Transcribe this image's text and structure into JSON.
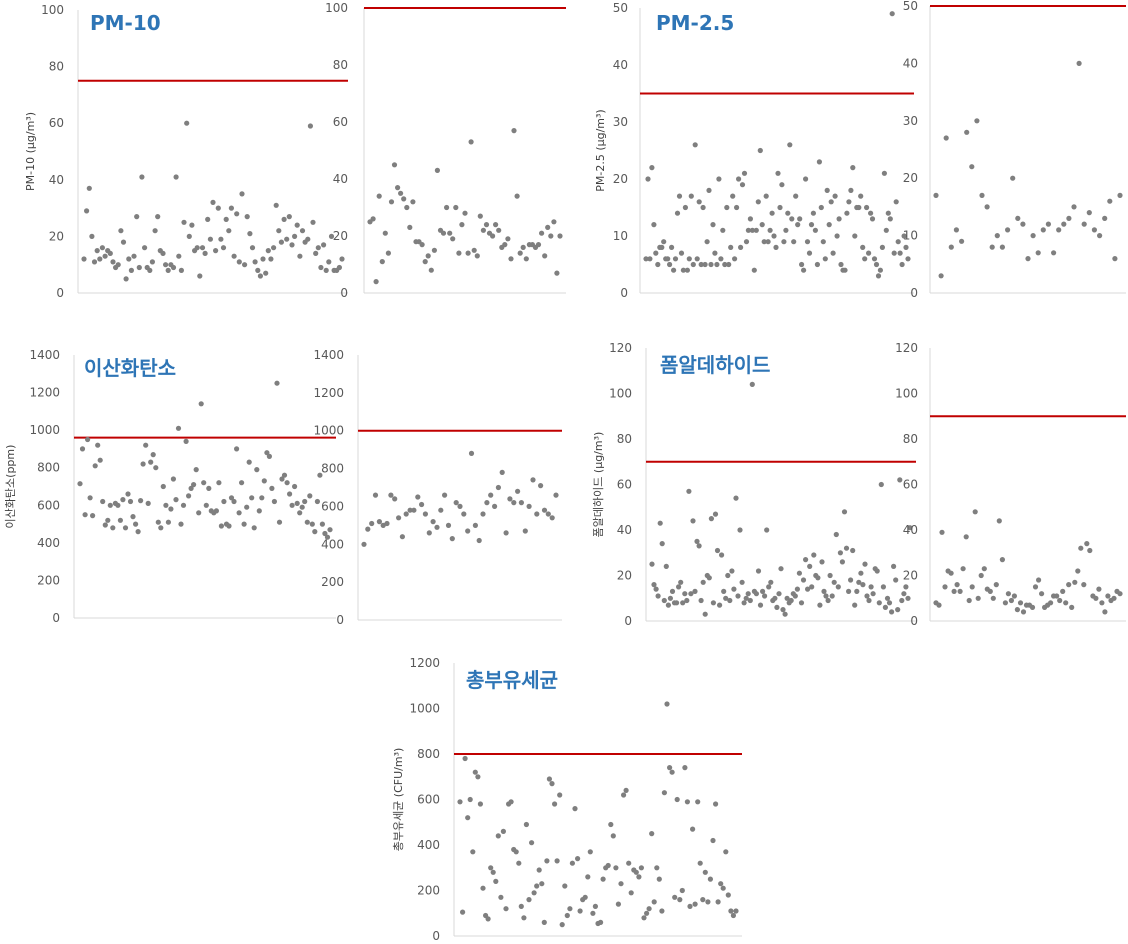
{
  "chart_data": [
    {
      "type": "scatter",
      "title": "PM-10",
      "ylabel": "PM-10 (μg/m³)",
      "ylim": [
        0,
        100
      ],
      "yticks": [
        0,
        20,
        40,
        60,
        80,
        100
      ],
      "reference_line": 75,
      "series_color": "#7f7f7f",
      "line_color": "#c00000",
      "values": [
        12,
        29,
        37,
        20,
        11,
        15,
        12,
        16,
        13,
        15,
        14,
        11,
        9,
        10,
        22,
        18,
        5,
        12,
        8,
        13,
        27,
        9,
        41,
        16,
        9,
        8,
        11,
        22,
        27,
        15,
        14,
        10,
        8,
        10,
        9,
        41,
        13,
        8,
        25,
        60,
        20,
        24,
        15,
        16,
        6,
        16,
        14,
        26,
        19,
        32,
        15,
        30,
        19,
        16,
        26,
        22,
        30,
        13,
        28,
        11,
        35,
        10,
        27,
        21,
        16,
        11,
        8,
        6,
        12,
        7,
        15,
        12,
        16,
        31,
        22,
        18,
        26,
        19,
        27,
        17,
        20,
        24,
        13,
        22,
        18,
        19,
        59,
        25,
        14,
        16,
        9,
        17,
        8,
        11,
        20,
        8,
        8,
        9,
        12
      ]
    },
    {
      "type": "scatter",
      "title": "",
      "ylim": [
        0,
        100
      ],
      "yticks": [
        0,
        20,
        40,
        60,
        80,
        100
      ],
      "reference_line": 100,
      "series_color": "#7f7f7f",
      "line_color": "#c00000",
      "values": [
        25,
        26,
        4,
        34,
        11,
        21,
        14,
        32,
        45,
        37,
        35,
        33,
        30,
        23,
        32,
        18,
        18,
        17,
        11,
        13,
        8,
        15,
        43,
        22,
        21,
        30,
        21,
        19,
        30,
        14,
        24,
        28,
        14,
        53,
        15,
        13,
        27,
        22,
        24,
        21,
        20,
        24,
        22,
        16,
        17,
        19,
        12,
        57,
        34,
        14,
        16,
        12,
        17,
        17,
        16,
        17,
        21,
        13,
        23,
        20,
        25,
        7,
        20
      ]
    },
    {
      "type": "scatter",
      "title": "PM-2.5",
      "ylabel": "PM-2.5 (μg/m³)",
      "ylim": [
        0,
        50
      ],
      "yticks": [
        0,
        10,
        20,
        30,
        40,
        50
      ],
      "reference_line": 35,
      "series_color": "#7f7f7f",
      "line_color": "#c00000",
      "values": [
        6,
        20,
        6,
        22,
        12,
        7,
        5,
        8,
        8,
        9,
        6,
        6,
        5,
        8,
        4,
        6,
        14,
        17,
        7,
        4,
        15,
        4,
        6,
        17,
        5,
        26,
        6,
        16,
        5,
        15,
        5,
        9,
        18,
        5,
        12,
        7,
        5,
        20,
        6,
        11,
        5,
        15,
        5,
        8,
        17,
        6,
        15,
        20,
        8,
        19,
        21,
        9,
        11,
        13,
        11,
        4,
        11,
        16,
        25,
        12,
        9,
        17,
        9,
        11,
        14,
        10,
        8,
        21,
        15,
        19,
        9,
        11,
        14,
        26,
        13,
        9,
        17,
        12,
        13,
        5,
        4,
        20,
        9,
        7,
        12,
        14,
        11,
        5,
        23,
        15,
        9,
        6,
        18,
        12,
        16,
        7,
        17,
        10,
        13,
        5,
        4,
        4,
        14,
        16,
        18,
        22,
        10,
        15,
        15,
        17,
        8,
        6,
        15,
        7,
        14,
        13,
        6,
        5,
        3,
        4,
        8,
        21,
        11,
        14,
        13,
        49,
        7,
        16,
        9,
        7,
        5,
        10,
        8,
        6
      ]
    },
    {
      "type": "scatter",
      "title": "",
      "ylim": [
        0,
        50
      ],
      "yticks": [
        0,
        10,
        20,
        30,
        40,
        50
      ],
      "reference_line": 50,
      "series_color": "#7f7f7f",
      "line_color": "#c00000",
      "values": [
        17,
        3,
        27,
        8,
        11,
        9,
        28,
        22,
        30,
        17,
        15,
        8,
        10,
        8,
        11,
        20,
        13,
        12,
        6,
        10,
        7,
        11,
        12,
        7,
        11,
        12,
        13,
        15,
        40,
        12,
        14,
        11,
        10,
        13,
        16,
        6,
        17
      ]
    },
    {
      "type": "scatter",
      "title": "이산화탄소",
      "ylabel": "이산화탄소(ppm)",
      "ylim": [
        0,
        1400
      ],
      "yticks": [
        0,
        200,
        400,
        600,
        800,
        1000,
        1200,
        1400
      ],
      "reference_line": 960,
      "series_color": "#7f7f7f",
      "line_color": "#c00000",
      "values": [
        715,
        900,
        550,
        950,
        640,
        545,
        810,
        920,
        840,
        620,
        495,
        520,
        600,
        480,
        610,
        600,
        520,
        630,
        480,
        660,
        620,
        540,
        500,
        460,
        625,
        820,
        920,
        610,
        830,
        870,
        800,
        510,
        480,
        700,
        600,
        510,
        580,
        740,
        630,
        1010,
        500,
        600,
        940,
        650,
        690,
        710,
        790,
        560,
        1140,
        720,
        600,
        690,
        570,
        560,
        570,
        720,
        490,
        620,
        500,
        490,
        640,
        620,
        900,
        560,
        720,
        500,
        590,
        830,
        640,
        480,
        790,
        570,
        640,
        730,
        880,
        860,
        690,
        620,
        1250,
        510,
        740,
        760,
        720,
        660,
        600,
        700,
        610,
        560,
        590,
        620,
        510,
        650,
        500,
        460,
        620,
        760,
        500,
        450,
        430,
        470
      ]
    },
    {
      "type": "scatter",
      "title": "",
      "ylim": [
        0,
        1400
      ],
      "yticks": [
        0,
        200,
        400,
        600,
        800,
        1000,
        1200,
        1400
      ],
      "reference_line": 1000,
      "series_color": "#7f7f7f",
      "line_color": "#c00000",
      "values": [
        400,
        480,
        510,
        660,
        520,
        500,
        510,
        660,
        640,
        540,
        440,
        560,
        580,
        580,
        650,
        610,
        560,
        460,
        520,
        490,
        580,
        660,
        500,
        430,
        620,
        600,
        560,
        470,
        880,
        500,
        420,
        560,
        620,
        660,
        600,
        700,
        780,
        460,
        640,
        620,
        680,
        620,
        470,
        600,
        740,
        560,
        710,
        580,
        560,
        540,
        660
      ]
    },
    {
      "type": "scatter",
      "title": "폼알데하이드",
      "ylabel": "폼알데하이드 (μg/m³)",
      "ylim": [
        0,
        120
      ],
      "yticks": [
        0,
        20,
        40,
        60,
        80,
        100,
        120
      ],
      "reference_line": 70,
      "series_color": "#7f7f7f",
      "line_color": "#c00000",
      "values": [
        25,
        16,
        14,
        11,
        43,
        34,
        9,
        24,
        7,
        10,
        13,
        8,
        8,
        15,
        17,
        8,
        12,
        9,
        57,
        12,
        44,
        13,
        35,
        33,
        9,
        17,
        3,
        20,
        19,
        45,
        8,
        47,
        31,
        7,
        29,
        13,
        10,
        20,
        9,
        22,
        14,
        54,
        11,
        40,
        17,
        8,
        10,
        12,
        9,
        104,
        13,
        12,
        22,
        7,
        13,
        11,
        40,
        15,
        17,
        9,
        10,
        6,
        12,
        23,
        5,
        3,
        10,
        8,
        9,
        12,
        11,
        14,
        21,
        8,
        18,
        27,
        14,
        24,
        15,
        29,
        20,
        19,
        7,
        26,
        13,
        11,
        9,
        20,
        11,
        17,
        38,
        15,
        30,
        26,
        48,
        32,
        13,
        18,
        31,
        7,
        13,
        17,
        21,
        16,
        25,
        11,
        9,
        15,
        12,
        23,
        22,
        8,
        60,
        15,
        6,
        10,
        8,
        4,
        24,
        18,
        5,
        62,
        9,
        12,
        15,
        10,
        41
      ]
    },
    {
      "type": "scatter",
      "title": "",
      "ylim": [
        0,
        120
      ],
      "yticks": [
        0,
        20,
        40,
        60,
        80,
        100,
        120
      ],
      "reference_line": 90,
      "series_color": "#7f7f7f",
      "line_color": "#c00000",
      "values": [
        8,
        7,
        39,
        15,
        22,
        21,
        13,
        16,
        13,
        23,
        37,
        9,
        15,
        48,
        10,
        20,
        23,
        14,
        13,
        10,
        16,
        44,
        27,
        8,
        12,
        9,
        11,
        5,
        8,
        4,
        7,
        7,
        6,
        15,
        18,
        12,
        6,
        7,
        8,
        11,
        11,
        9,
        13,
        8,
        16,
        6,
        17,
        22,
        32,
        16,
        34,
        31,
        11,
        10,
        14,
        8,
        4,
        11,
        9,
        10,
        13,
        12
      ]
    },
    {
      "type": "scatter",
      "title": "총부유세균",
      "ylabel": "총부유세균 (CFU/m³)",
      "ylim": [
        0,
        1200
      ],
      "yticks": [
        0,
        200,
        400,
        600,
        800,
        1000,
        1200
      ],
      "reference_line": 800,
      "series_color": "#7f7f7f",
      "line_color": "#c00000",
      "values": [
        590,
        105,
        780,
        520,
        600,
        370,
        720,
        700,
        580,
        210,
        90,
        75,
        300,
        280,
        240,
        440,
        170,
        460,
        120,
        580,
        590,
        380,
        370,
        320,
        130,
        80,
        490,
        160,
        410,
        190,
        220,
        290,
        230,
        60,
        330,
        690,
        670,
        580,
        330,
        620,
        50,
        220,
        90,
        120,
        320,
        560,
        340,
        110,
        160,
        170,
        260,
        370,
        100,
        130,
        55,
        60,
        250,
        300,
        310,
        490,
        440,
        300,
        140,
        230,
        620,
        640,
        320,
        190,
        290,
        280,
        260,
        300,
        80,
        100,
        120,
        450,
        150,
        300,
        250,
        110,
        630,
        1020,
        740,
        720,
        170,
        600,
        160,
        200,
        740,
        590,
        130,
        470,
        140,
        590,
        320,
        160,
        280,
        150,
        250,
        420,
        580,
        150,
        230,
        210,
        370,
        180,
        110,
        90,
        110
      ]
    }
  ]
}
